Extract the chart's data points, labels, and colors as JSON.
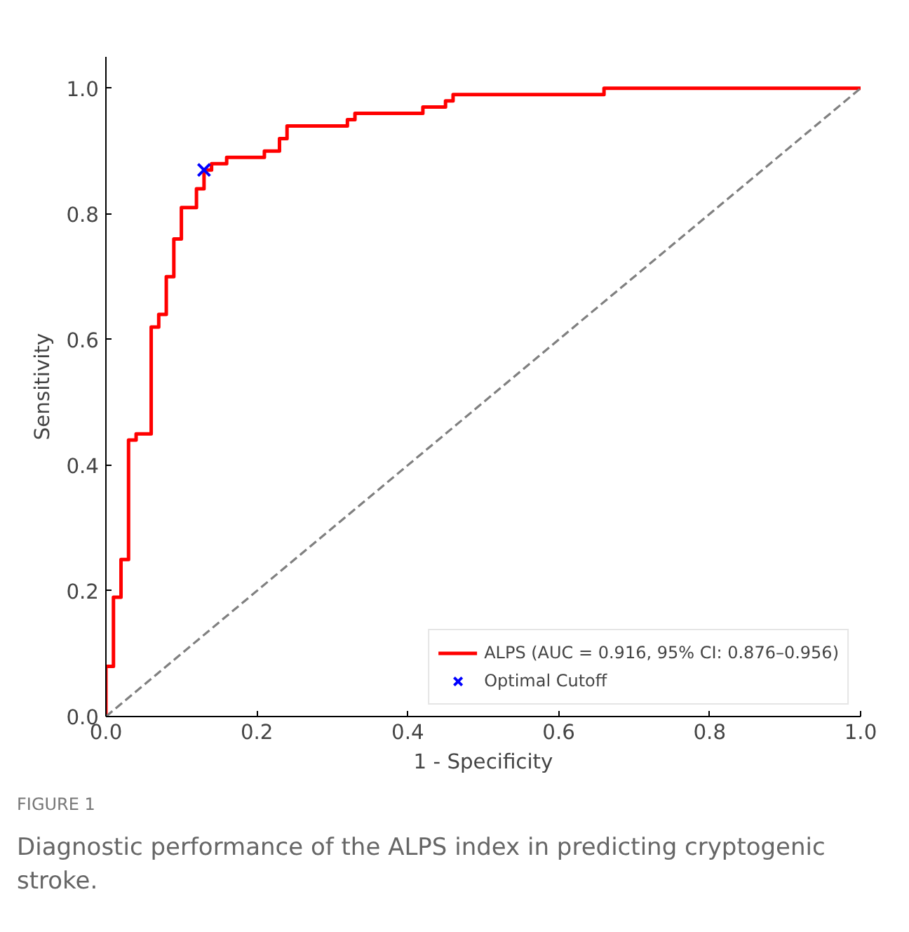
{
  "chart_data": {
    "type": "line",
    "xlabel": "1 - Specificity",
    "ylabel": "Sensitivity",
    "xlim": [
      0,
      1
    ],
    "ylim": [
      0,
      1.05
    ],
    "xticks": [
      {
        "value": 0,
        "label": "0.0"
      },
      {
        "value": 0.2,
        "label": "0.2"
      },
      {
        "value": 0.4,
        "label": "0.4"
      },
      {
        "value": 0.6,
        "label": "0.6"
      },
      {
        "value": 0.8,
        "label": "0.8"
      },
      {
        "value": 1,
        "label": "1.0"
      }
    ],
    "yticks": [
      {
        "value": 0,
        "label": "0.0"
      },
      {
        "value": 0.2,
        "label": "0.2"
      },
      {
        "value": 0.4,
        "label": "0.4"
      },
      {
        "value": 0.6,
        "label": "0.6"
      },
      {
        "value": 0.8,
        "label": "0.8"
      },
      {
        "value": 1,
        "label": "1.0"
      }
    ],
    "grid": false,
    "legend": "bottom right",
    "series": [
      {
        "name": "ALPS (AUC = 0.916, 95% CI: 0.876–0.956)",
        "color": "#ff0000",
        "line_style": "solid",
        "x": [
          0,
          0,
          0.01,
          0.01,
          0.02,
          0.02,
          0.03,
          0.03,
          0.04,
          0.04,
          0.06,
          0.06,
          0.07,
          0.07,
          0.08,
          0.08,
          0.09,
          0.09,
          0.1,
          0.1,
          0.12,
          0.12,
          0.13,
          0.13,
          0.14,
          0.14,
          0.16,
          0.16,
          0.21,
          0.21,
          0.23,
          0.23,
          0.24,
          0.24,
          0.32,
          0.32,
          0.33,
          0.33,
          0.42,
          0.42,
          0.45,
          0.45,
          0.46,
          0.46,
          0.66,
          0.66,
          1.0
        ],
        "values": [
          0,
          0.08,
          0.08,
          0.19,
          0.19,
          0.25,
          0.25,
          0.44,
          0.44,
          0.45,
          0.45,
          0.62,
          0.62,
          0.64,
          0.64,
          0.7,
          0.7,
          0.76,
          0.76,
          0.81,
          0.81,
          0.84,
          0.84,
          0.87,
          0.87,
          0.88,
          0.88,
          0.89,
          0.89,
          0.9,
          0.9,
          0.92,
          0.92,
          0.94,
          0.94,
          0.95,
          0.95,
          0.96,
          0.96,
          0.97,
          0.97,
          0.98,
          0.98,
          0.99,
          0.99,
          1.0,
          1.0
        ]
      },
      {
        "color": "#808080",
        "line_style": "dashed",
        "x": [
          0,
          1
        ],
        "values": [
          0,
          1
        ]
      },
      {
        "name": "Optimal Cutoff",
        "type": "scatter",
        "color": "#0000ff",
        "marker": "cross",
        "x": [
          0.13
        ],
        "values": [
          0.87
        ]
      }
    ],
    "annotations": [
      "FIGURE 1",
      "Diagnostic performance of the ALPS index in predicting cryptogenic stroke."
    ]
  }
}
